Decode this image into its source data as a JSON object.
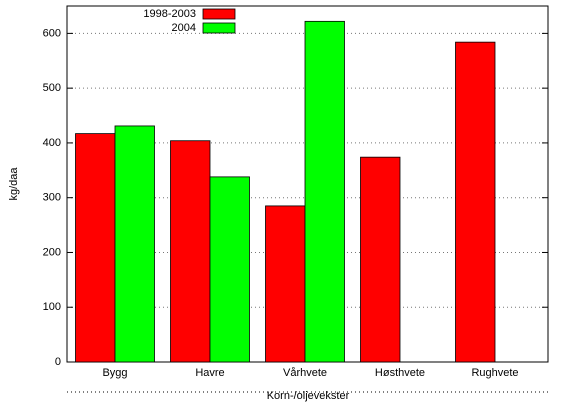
{
  "chart_data": {
    "type": "bar",
    "x_label": "Korn-/oljevekster",
    "y_label": "kg/daa",
    "categories": [
      "Bygg",
      "Havre",
      "Vårhvete",
      "Høsthvete",
      "Rughvete"
    ],
    "series": [
      {
        "name": "1998-2003",
        "color": "#ff0000",
        "values": [
          417,
          404,
          285,
          374,
          584
        ]
      },
      {
        "name": "2004",
        "color": "#00ff00",
        "values": [
          431,
          338,
          622,
          null,
          null
        ]
      }
    ],
    "ylim": [
      0,
      650
    ],
    "yticks": [
      0,
      100,
      200,
      300,
      400,
      500,
      600
    ],
    "grid": true
  }
}
